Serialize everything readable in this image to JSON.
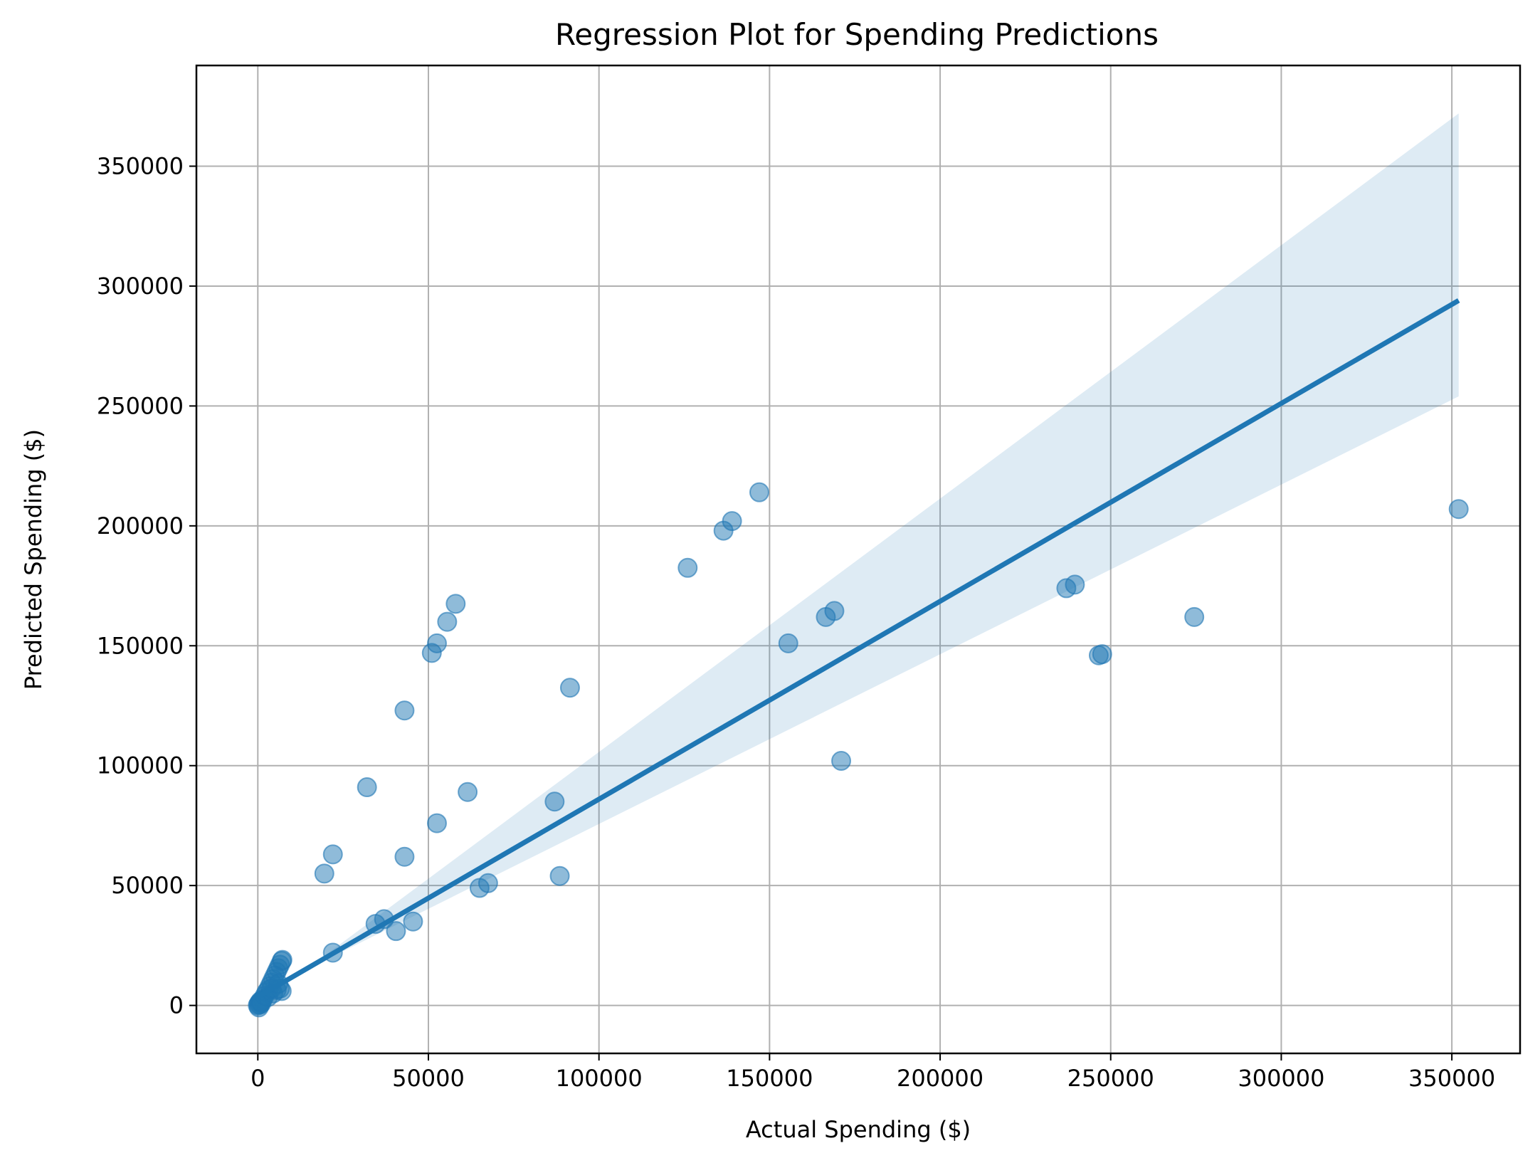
{
  "chart_data": {
    "type": "scatter",
    "title": "Regression Plot for Spending Predictions",
    "xlabel": "Actual Spending ($)",
    "ylabel": "Predicted Spending ($)",
    "xlim": [
      -18000,
      370000
    ],
    "ylim": [
      -20000,
      392000
    ],
    "xticks": [
      0,
      50000,
      100000,
      150000,
      200000,
      250000,
      300000,
      350000
    ],
    "yticks": [
      0,
      50000,
      100000,
      150000,
      200000,
      250000,
      300000,
      350000
    ],
    "grid": true,
    "colors": {
      "points": "#1f77b4",
      "line": "#1f77b4",
      "band": "#1f77b4",
      "grid": "#b0b0b0"
    },
    "regression": {
      "x": [
        0,
        352000
      ],
      "y": [
        3500,
        294000
      ],
      "ci_upper_end": 372000,
      "ci_lower_end": 254000
    },
    "points": [
      [
        0,
        0
      ],
      [
        200,
        500
      ],
      [
        500,
        1200
      ],
      [
        800,
        1800
      ],
      [
        1000,
        800
      ],
      [
        1200,
        2000
      ],
      [
        1500,
        2600
      ],
      [
        300,
        -800
      ],
      [
        600,
        300
      ],
      [
        900,
        1400
      ],
      [
        2000,
        4000
      ],
      [
        2500,
        5500
      ],
      [
        3000,
        6500
      ],
      [
        3500,
        8000
      ],
      [
        4000,
        9500
      ],
      [
        4500,
        11000
      ],
      [
        5000,
        12500
      ],
      [
        5500,
        14000
      ],
      [
        6000,
        15500
      ],
      [
        6500,
        17000
      ],
      [
        7000,
        18500
      ],
      [
        7200,
        19000
      ],
      [
        3000,
        3500
      ],
      [
        4500,
        5000
      ],
      [
        5500,
        6500
      ],
      [
        6500,
        7000
      ],
      [
        7000,
        6000
      ],
      [
        4000,
        7000
      ],
      [
        6000,
        9000
      ],
      [
        19500,
        55000
      ],
      [
        22000,
        63000
      ],
      [
        22000,
        22000
      ],
      [
        32000,
        91000
      ],
      [
        34500,
        34000
      ],
      [
        37000,
        36000
      ],
      [
        40500,
        31000
      ],
      [
        43000,
        62000
      ],
      [
        43000,
        123000
      ],
      [
        45500,
        35000
      ],
      [
        51000,
        147000
      ],
      [
        52500,
        151000
      ],
      [
        52500,
        76000
      ],
      [
        55500,
        160000
      ],
      [
        58000,
        167500
      ],
      [
        61500,
        89000
      ],
      [
        65000,
        49000
      ],
      [
        67500,
        51000
      ],
      [
        87000,
        85000
      ],
      [
        88500,
        54000
      ],
      [
        91500,
        132500
      ],
      [
        126000,
        182500
      ],
      [
        136500,
        198000
      ],
      [
        139000,
        202000
      ],
      [
        147000,
        214000
      ],
      [
        155500,
        151000
      ],
      [
        166500,
        162000
      ],
      [
        169000,
        164500
      ],
      [
        171000,
        102000
      ],
      [
        237000,
        174000
      ],
      [
        239500,
        175500
      ],
      [
        246500,
        146000
      ],
      [
        247500,
        146500
      ],
      [
        274500,
        162000
      ],
      [
        352000,
        207000
      ]
    ]
  }
}
